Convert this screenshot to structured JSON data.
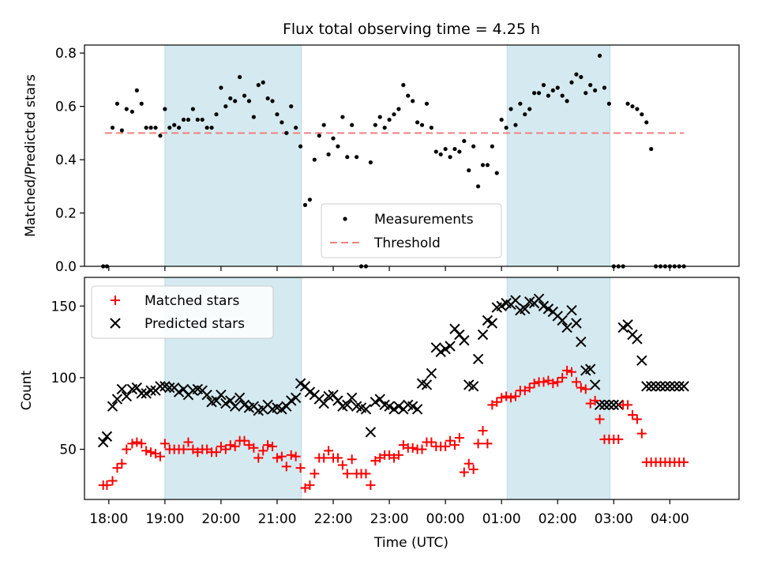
{
  "chart_data": [
    {
      "type": "scatter",
      "title": "Flux total observing time = 4.25 h",
      "ylabel": "Matched/Predicted stars",
      "xlabel": "",
      "xlim": [
        "17:34",
        "29:14"
      ],
      "ylim": [
        0,
        0.83
      ],
      "yticks": [
        0.0,
        0.2,
        0.4,
        0.6,
        0.8
      ],
      "ytick_labels": [
        "0.0",
        "0.2",
        "0.4",
        "0.6",
        "0.8"
      ],
      "shaded_regions": [
        [
          "19:00",
          "21:26"
        ],
        [
          "01:06",
          "02:56"
        ]
      ],
      "shade_color": "#d4eaf0",
      "threshold": 0.5,
      "threshold_color": "#f08080",
      "marker_color": "#000000",
      "legend_position": "lower center",
      "series": [
        {
          "name": "Measurements",
          "times": [
            "17:54",
            "17:58",
            "18:04",
            "18:09",
            "18:14",
            "18:19",
            "18:25",
            "18:30",
            "18:35",
            "18:40",
            "18:45",
            "18:50",
            "18:55",
            "19:00",
            "19:05",
            "19:10",
            "19:15",
            "19:20",
            "19:25",
            "19:30",
            "19:35",
            "19:40",
            "19:45",
            "19:50",
            "19:55",
            "20:00",
            "20:05",
            "20:10",
            "20:15",
            "20:20",
            "20:25",
            "20:30",
            "20:35",
            "20:40",
            "20:45",
            "20:50",
            "20:55",
            "21:00",
            "21:05",
            "21:10",
            "21:15",
            "21:20",
            "21:25",
            "21:30",
            "21:35",
            "21:40",
            "21:45",
            "21:50",
            "21:55",
            "22:00",
            "22:05",
            "22:10",
            "22:15",
            "22:20",
            "22:25",
            "22:30",
            "22:35",
            "22:40",
            "22:45",
            "22:50",
            "22:55",
            "23:00",
            "23:05",
            "23:10",
            "23:15",
            "23:20",
            "23:25",
            "23:30",
            "23:35",
            "23:40",
            "23:45",
            "23:50",
            "23:55",
            "00:00",
            "00:05",
            "00:10",
            "00:15",
            "00:20",
            "00:25",
            "00:30",
            "00:35",
            "00:40",
            "00:45",
            "00:50",
            "00:55",
            "01:00",
            "01:05",
            "01:10",
            "01:15",
            "01:20",
            "01:25",
            "01:30",
            "01:35",
            "01:40",
            "01:45",
            "01:50",
            "01:55",
            "02:00",
            "02:05",
            "02:10",
            "02:15",
            "02:20",
            "02:25",
            "02:30",
            "02:35",
            "02:40",
            "02:45",
            "02:50",
            "02:55",
            "03:00",
            "03:05",
            "03:10",
            "03:15",
            "03:20",
            "03:25",
            "03:30",
            "03:35",
            "03:40",
            "03:45",
            "03:50",
            "03:55",
            "04:00",
            "04:05",
            "04:10",
            "04:15"
          ],
          "values": [
            0.0,
            0.0,
            0.52,
            0.61,
            0.51,
            0.59,
            0.58,
            0.66,
            0.61,
            0.52,
            0.52,
            0.52,
            0.49,
            0.59,
            0.52,
            0.53,
            0.52,
            0.55,
            0.55,
            0.59,
            0.55,
            0.55,
            0.52,
            0.52,
            0.57,
            0.67,
            0.6,
            0.63,
            0.62,
            0.71,
            0.64,
            0.62,
            0.56,
            0.68,
            0.69,
            0.63,
            0.62,
            0.57,
            0.54,
            0.5,
            0.6,
            0.52,
            0.45,
            0.23,
            0.25,
            0.4,
            0.49,
            0.53,
            0.42,
            0.48,
            0.45,
            0.56,
            0.41,
            0.53,
            0.41,
            0.0,
            0.0,
            0.39,
            0.53,
            0.56,
            0.52,
            0.55,
            0.57,
            0.59,
            0.68,
            0.64,
            0.62,
            0.54,
            0.53,
            0.61,
            0.52,
            0.43,
            0.42,
            0.44,
            0.41,
            0.44,
            0.43,
            0.47,
            0.36,
            0.45,
            0.3,
            0.38,
            0.38,
            0.45,
            0.35,
            0.55,
            0.52,
            0.59,
            0.53,
            0.61,
            0.57,
            0.59,
            0.65,
            0.65,
            0.68,
            0.64,
            0.66,
            0.67,
            0.64,
            0.62,
            0.69,
            0.72,
            0.71,
            0.65,
            0.68,
            0.66,
            0.79,
            0.67,
            0.61,
            0.0,
            0.0,
            0.0,
            0.61,
            0.6,
            0.59,
            0.57,
            0.54,
            0.44,
            0.0,
            0.0,
            0.0,
            0.0,
            0.0,
            0.0,
            0.0
          ]
        },
        {
          "name": "Threshold",
          "x_range": [
            "17:56",
            "04:15"
          ],
          "value": 0.5
        }
      ]
    },
    {
      "type": "scatter",
      "title": "",
      "xlabel": "Time (UTC)",
      "ylabel": "Count",
      "xlim": [
        "17:34",
        "29:14"
      ],
      "ylim": [
        15,
        170
      ],
      "xticks": [
        "18:00",
        "19:00",
        "20:00",
        "21:00",
        "22:00",
        "23:00",
        "00:00",
        "01:00",
        "02:00",
        "03:00",
        "04:00"
      ],
      "yticks": [
        50,
        100,
        150
      ],
      "shaded_regions": [
        [
          "19:00",
          "21:26"
        ],
        [
          "01:06",
          "02:56"
        ]
      ],
      "shade_color": "#d4eaf0",
      "legend_position": "upper left",
      "series": [
        {
          "name": "Matched stars",
          "marker": "+",
          "color": "#ff0000",
          "times": [
            "17:54",
            "17:58",
            "18:04",
            "18:09",
            "18:14",
            "18:19",
            "18:25",
            "18:30",
            "18:35",
            "18:40",
            "18:45",
            "18:50",
            "18:55",
            "19:00",
            "19:05",
            "19:10",
            "19:15",
            "19:20",
            "19:25",
            "19:30",
            "19:35",
            "19:40",
            "19:45",
            "19:50",
            "19:55",
            "20:00",
            "20:05",
            "20:10",
            "20:15",
            "20:20",
            "20:25",
            "20:30",
            "20:35",
            "20:40",
            "20:45",
            "20:50",
            "20:55",
            "21:00",
            "21:05",
            "21:10",
            "21:15",
            "21:20",
            "21:25",
            "21:30",
            "21:35",
            "21:40",
            "21:45",
            "21:50",
            "21:55",
            "22:00",
            "22:05",
            "22:10",
            "22:15",
            "22:20",
            "22:25",
            "22:30",
            "22:35",
            "22:40",
            "22:45",
            "22:50",
            "22:55",
            "23:00",
            "23:05",
            "23:10",
            "23:15",
            "23:20",
            "23:25",
            "23:30",
            "23:35",
            "23:40",
            "23:45",
            "23:50",
            "23:55",
            "00:00",
            "00:05",
            "00:10",
            "00:15",
            "00:20",
            "00:25",
            "00:30",
            "00:35",
            "00:40",
            "00:45",
            "00:50",
            "00:55",
            "01:00",
            "01:05",
            "01:10",
            "01:15",
            "01:20",
            "01:25",
            "01:30",
            "01:35",
            "01:40",
            "01:45",
            "01:50",
            "01:55",
            "02:00",
            "02:05",
            "02:10",
            "02:15",
            "02:20",
            "02:25",
            "02:30",
            "02:35",
            "02:40",
            "02:45",
            "02:50",
            "02:55",
            "03:00",
            "03:05",
            "03:10",
            "03:15",
            "03:20",
            "03:25",
            "03:30",
            "03:35",
            "03:40",
            "03:45",
            "03:50",
            "03:55",
            "04:00",
            "04:05",
            "04:10",
            "04:15"
          ],
          "values": [
            25,
            25,
            28,
            37,
            40,
            50,
            54,
            55,
            54,
            49,
            48,
            47,
            45,
            54,
            50,
            50,
            50,
            50,
            55,
            50,
            48,
            50,
            50,
            48,
            48,
            52,
            50,
            53,
            52,
            56,
            56,
            53,
            51,
            44,
            49,
            53,
            52,
            44,
            45,
            38,
            46,
            45,
            37,
            23,
            25,
            33,
            44,
            44,
            49,
            44,
            44,
            39,
            33,
            43,
            33,
            33,
            33,
            25,
            42,
            44,
            46,
            46,
            44,
            46,
            53,
            51,
            51,
            50,
            50,
            55,
            55,
            52,
            52,
            52,
            56,
            53,
            58,
            34,
            40,
            36,
            54,
            63,
            54,
            81,
            83,
            86,
            87,
            86,
            87,
            91,
            91,
            93,
            96,
            97,
            97,
            98,
            96,
            97,
            100,
            105,
            104,
            97,
            93,
            92,
            82,
            84,
            71,
            57,
            57,
            57,
            57,
            81,
            81,
            74,
            71,
            61,
            41,
            41,
            41,
            41,
            41,
            41,
            41,
            41,
            41
          ]
        },
        {
          "name": "Predicted stars",
          "marker": "x",
          "color": "#000000",
          "times": [
            "17:54",
            "17:58",
            "18:04",
            "18:09",
            "18:14",
            "18:19",
            "18:25",
            "18:30",
            "18:35",
            "18:40",
            "18:45",
            "18:50",
            "18:55",
            "19:00",
            "19:05",
            "19:10",
            "19:15",
            "19:20",
            "19:25",
            "19:30",
            "19:35",
            "19:40",
            "19:45",
            "19:50",
            "19:55",
            "20:00",
            "20:05",
            "20:10",
            "20:15",
            "20:20",
            "20:25",
            "20:30",
            "20:35",
            "20:40",
            "20:45",
            "20:50",
            "20:55",
            "21:00",
            "21:05",
            "21:10",
            "21:15",
            "21:20",
            "21:25",
            "21:30",
            "21:35",
            "21:40",
            "21:45",
            "21:50",
            "21:55",
            "22:00",
            "22:05",
            "22:10",
            "22:15",
            "22:20",
            "22:25",
            "22:30",
            "22:35",
            "22:40",
            "22:45",
            "22:50",
            "22:55",
            "23:00",
            "23:05",
            "23:10",
            "23:15",
            "23:20",
            "23:25",
            "23:30",
            "23:35",
            "23:40",
            "23:45",
            "23:50",
            "23:55",
            "00:00",
            "00:05",
            "00:10",
            "00:15",
            "00:20",
            "00:25",
            "00:30",
            "00:35",
            "00:40",
            "00:45",
            "00:50",
            "00:55",
            "01:00",
            "01:05",
            "01:10",
            "01:15",
            "01:20",
            "01:25",
            "01:30",
            "01:35",
            "01:40",
            "01:45",
            "01:50",
            "01:55",
            "02:00",
            "02:05",
            "02:10",
            "02:15",
            "02:20",
            "02:25",
            "02:30",
            "02:35",
            "02:40",
            "02:45",
            "02:50",
            "02:55",
            "03:00",
            "03:05",
            "03:10",
            "03:15",
            "03:20",
            "03:25",
            "03:30",
            "03:35",
            "03:40",
            "03:45",
            "03:50",
            "03:55",
            "04:00",
            "04:05",
            "04:10",
            "04:15"
          ],
          "values": [
            55,
            59,
            80,
            85,
            92,
            87,
            92,
            93,
            89,
            89,
            91,
            91,
            94,
            94,
            93,
            93,
            90,
            92,
            88,
            91,
            92,
            91,
            88,
            83,
            84,
            88,
            82,
            84,
            80,
            86,
            81,
            79,
            80,
            77,
            78,
            81,
            78,
            79,
            78,
            80,
            84,
            86,
            96,
            94,
            90,
            88,
            85,
            82,
            87,
            88,
            84,
            80,
            81,
            86,
            80,
            79,
            78,
            62,
            83,
            85,
            81,
            80,
            78,
            80,
            78,
            81,
            80,
            78,
            96,
            95,
            103,
            121,
            118,
            120,
            122,
            134,
            130,
            126,
            95,
            94,
            113,
            130,
            140,
            138,
            149,
            150,
            152,
            151,
            154,
            147,
            148,
            153,
            152,
            155,
            150,
            148,
            146,
            143,
            140,
            135,
            147,
            138,
            125,
            105,
            106,
            95,
            81,
            81,
            81,
            81,
            81,
            135,
            137,
            130,
            127,
            112,
            94,
            94,
            94,
            94,
            94,
            94,
            94,
            94,
            94
          ],
          "display_count": 112
        }
      ]
    }
  ]
}
